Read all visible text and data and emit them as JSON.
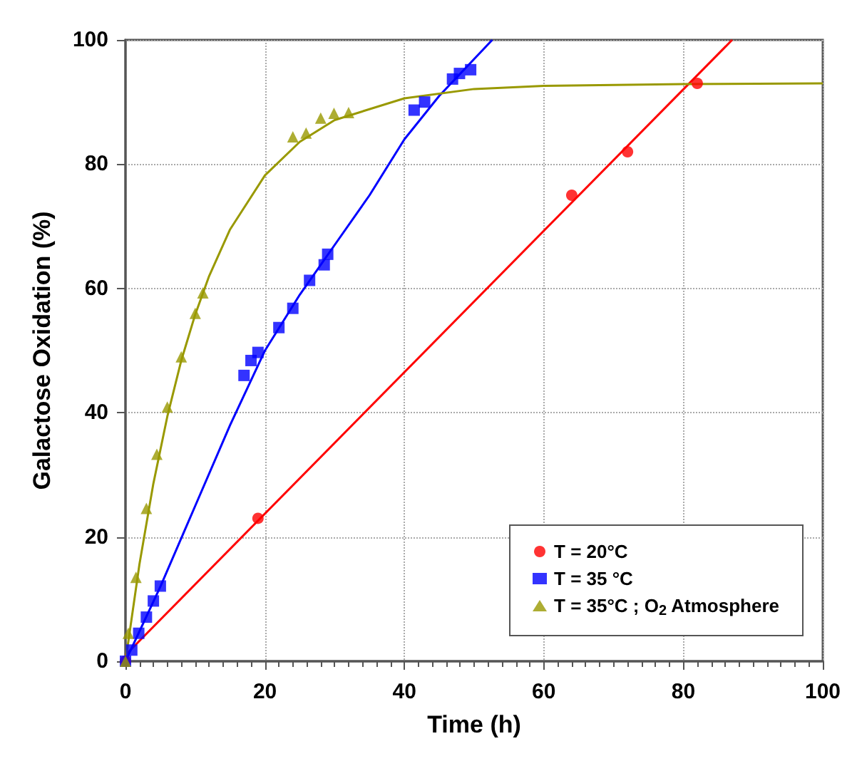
{
  "chart_data": {
    "type": "scatter",
    "xlabel": "Time (h)",
    "ylabel": "Galactose Oxidation (%)",
    "xlim": [
      0,
      100
    ],
    "ylim": [
      0,
      100
    ],
    "xticks": [
      0,
      20,
      40,
      60,
      80,
      100
    ],
    "yticks": [
      0,
      20,
      40,
      60,
      80,
      100
    ],
    "grid": true,
    "legend": "bottom right",
    "series": [
      {
        "name": "T = 20°C",
        "color": "#ff0000",
        "marker": "circle",
        "x": [
          0,
          19,
          64,
          72,
          82
        ],
        "values": [
          0,
          23,
          75,
          82,
          93
        ]
      },
      {
        "name": "T = 35 °C",
        "color": "#0000ff",
        "marker": "square",
        "x": [
          0,
          0.9,
          1.9,
          3,
          4,
          5,
          17,
          18,
          19,
          22,
          24,
          26.4,
          28.5,
          29,
          41.4,
          42.9,
          46.9,
          47.9,
          49.5
        ],
        "values": [
          0,
          1.8,
          4.5,
          7.1,
          9.7,
          12.1,
          46,
          48.4,
          49.7,
          53.7,
          56.8,
          61.3,
          63.8,
          65.5,
          88.7,
          90,
          93.7,
          94.6,
          95.2
        ]
      },
      {
        "name": "T = 35°C ; O$_{2}$ Atmosphere",
        "color": "#999900",
        "marker": "triangle",
        "x": [
          0,
          0.4,
          1.5,
          3,
          4.5,
          6,
          8,
          10,
          11.1,
          24,
          25.9,
          28,
          29.9,
          32
        ],
        "values": [
          0,
          4.5,
          13.5,
          24.6,
          33.3,
          40.9,
          49,
          56,
          59.3,
          84.4,
          85,
          87.4,
          88.2,
          88.3
        ]
      },
      {
        "type": "line",
        "color": "#ff0000",
        "marker": "none",
        "x": [
          0,
          87
        ],
        "values": [
          1,
          100
        ]
      },
      {
        "type": "line",
        "color": "#0000ff",
        "marker": "none",
        "x": [
          0,
          5,
          10,
          15,
          20,
          25,
          30,
          35,
          40,
          45,
          52.6
        ],
        "values": [
          0,
          12,
          25,
          38,
          50,
          59,
          67,
          75,
          84,
          91,
          100
        ]
      },
      {
        "type": "line",
        "color": "#999900",
        "marker": "none",
        "x": [
          0,
          2,
          4,
          6,
          8,
          10,
          12,
          15,
          20,
          25,
          30,
          40,
          50,
          60,
          80,
          100
        ],
        "values": [
          0,
          15.6,
          28.6,
          39.4,
          48.4,
          55.8,
          62,
          69.5,
          78.2,
          83.6,
          87.1,
          90.6,
          92.1,
          92.6,
          92.9,
          93
        ]
      }
    ]
  }
}
